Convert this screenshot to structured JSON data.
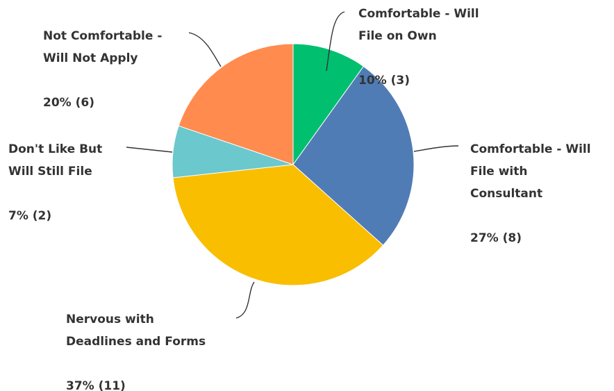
{
  "chart_data": {
    "type": "pie",
    "start_angle_deg": 0,
    "direction": "clockwise",
    "slices": [
      {
        "name": "Comfortable - Will File on Own",
        "label_lines": [
          "Comfortable - Will",
          "File on Own"
        ],
        "value_label": "10% (3)",
        "percent": 10,
        "count": 3,
        "color": "#00bf6f"
      },
      {
        "name": "Comfortable - Will File with Consultant",
        "label_lines": [
          "Comfortable - Will",
          "File with",
          "Consultant"
        ],
        "value_label": "27% (8)",
        "percent": 27,
        "count": 8,
        "color": "#507cb6"
      },
      {
        "name": "Nervous with Deadlines and Forms",
        "label_lines": [
          "Nervous with",
          "Deadlines and Forms"
        ],
        "value_label": "37% (11)",
        "percent": 37,
        "count": 11,
        "color": "#f9be00"
      },
      {
        "name": "Don't Like But Will Still File",
        "label_lines": [
          "Don't Like But",
          "Will Still File"
        ],
        "value_label": "7% (2)",
        "percent": 7,
        "count": 2,
        "color": "#6bc8cd"
      },
      {
        "name": "Not Comfortable - Will Not Apply",
        "label_lines": [
          "Not Comfortable -",
          "Will Not Apply"
        ],
        "value_label": "20% (6)",
        "percent": 20,
        "count": 6,
        "color": "#ff8b4f"
      }
    ],
    "legend": "none"
  }
}
